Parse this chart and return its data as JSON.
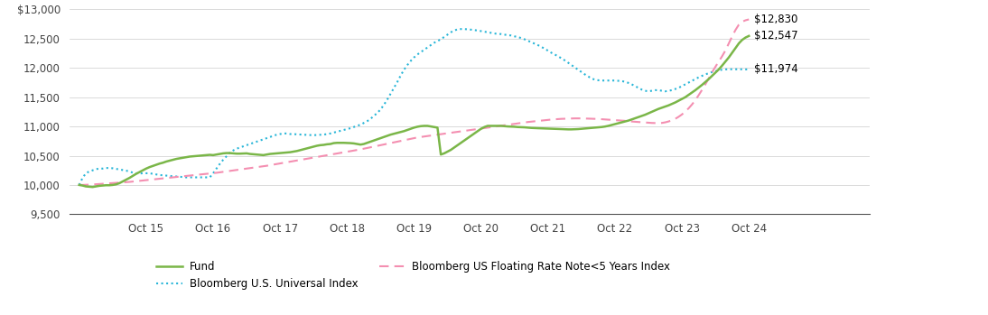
{
  "x_labels": [
    "",
    "Oct 15",
    "Oct 16",
    "Oct 17",
    "Oct 18",
    "Oct 19",
    "Oct 20",
    "Oct 21",
    "Oct 22",
    "Oct 23",
    "Oct 24"
  ],
  "ylim": [
    9500,
    13000
  ],
  "yticks": [
    9500,
    10000,
    10500,
    11000,
    11500,
    12000,
    12500,
    13000
  ],
  "fund_label": "Fund",
  "fund_color": "#7ab648",
  "fund_end_label": "$12,547",
  "bloomberg_universal_label": "Bloomberg U.S. Universal Index",
  "bloomberg_universal_color": "#29b6d8",
  "bloomberg_universal_end_label": "$11,974",
  "floating_rate_label": "Bloomberg US Floating Rate Note<5 Years Index",
  "floating_rate_color": "#f48fb1",
  "floating_rate_end_label": "$12,830",
  "fund_data": [
    10000,
    9990,
    9975,
    9970,
    9965,
    9975,
    9985,
    9990,
    9995,
    9995,
    10000,
    10010,
    10030,
    10060,
    10090,
    10120,
    10155,
    10190,
    10220,
    10250,
    10280,
    10305,
    10325,
    10345,
    10365,
    10380,
    10400,
    10415,
    10430,
    10445,
    10455,
    10465,
    10475,
    10485,
    10490,
    10495,
    10500,
    10505,
    10510,
    10515,
    10510,
    10520,
    10530,
    10540,
    10545,
    10545,
    10540,
    10535,
    10535,
    10538,
    10540,
    10530,
    10525,
    10520,
    10515,
    10510,
    10520,
    10530,
    10535,
    10540,
    10545,
    10550,
    10555,
    10560,
    10570,
    10580,
    10595,
    10610,
    10625,
    10640,
    10655,
    10670,
    10680,
    10685,
    10695,
    10700,
    10715,
    10720,
    10720,
    10720,
    10718,
    10715,
    10710,
    10700,
    10690,
    10700,
    10720,
    10740,
    10760,
    10780,
    10800,
    10820,
    10840,
    10860,
    10875,
    10890,
    10905,
    10920,
    10940,
    10960,
    10980,
    10995,
    11005,
    11010,
    11010,
    11000,
    10990,
    10980,
    10520,
    10540,
    10570,
    10600,
    10640,
    10680,
    10720,
    10760,
    10800,
    10840,
    10880,
    10920,
    10960,
    10990,
    11010,
    11010,
    11010,
    11010,
    11010,
    11005,
    11000,
    10998,
    10995,
    10990,
    10988,
    10985,
    10980,
    10975,
    10972,
    10970,
    10968,
    10965,
    10965,
    10963,
    10960,
    10958,
    10955,
    10952,
    10950,
    10950,
    10952,
    10955,
    10960,
    10965,
    10970,
    10975,
    10980,
    10985,
    10990,
    10998,
    11010,
    11025,
    11040,
    11055,
    11070,
    11085,
    11100,
    11120,
    11140,
    11160,
    11180,
    11200,
    11225,
    11250,
    11275,
    11300,
    11320,
    11340,
    11360,
    11385,
    11410,
    11440,
    11470,
    11500,
    11540,
    11580,
    11620,
    11665,
    11710,
    11760,
    11810,
    11865,
    11920,
    11975,
    12040,
    12110,
    12180,
    12260,
    12340,
    12420,
    12480,
    12520,
    12547
  ],
  "bloomberg_universal_data": [
    10000,
    10120,
    10200,
    10230,
    10250,
    10270,
    10280,
    10280,
    10290,
    10290,
    10285,
    10275,
    10265,
    10255,
    10245,
    10230,
    10210,
    10200,
    10195,
    10200,
    10200,
    10200,
    10190,
    10180,
    10170,
    10165,
    10160,
    10155,
    10148,
    10145,
    10140,
    10135,
    10130,
    10130,
    10130,
    10130,
    10130,
    10130,
    10130,
    10130,
    10200,
    10280,
    10360,
    10430,
    10490,
    10550,
    10590,
    10620,
    10640,
    10660,
    10680,
    10700,
    10720,
    10740,
    10760,
    10780,
    10800,
    10820,
    10840,
    10860,
    10870,
    10880,
    10880,
    10870,
    10870,
    10865,
    10862,
    10858,
    10855,
    10852,
    10850,
    10855,
    10858,
    10860,
    10870,
    10880,
    10895,
    10910,
    10925,
    10940,
    10955,
    10970,
    10990,
    11010,
    11030,
    11060,
    11090,
    11130,
    11180,
    11230,
    11290,
    11370,
    11460,
    11560,
    11660,
    11760,
    11870,
    11970,
    12050,
    12120,
    12180,
    12230,
    12270,
    12310,
    12350,
    12390,
    12430,
    12460,
    12490,
    12530,
    12570,
    12610,
    12640,
    12660,
    12665,
    12665,
    12660,
    12655,
    12648,
    12640,
    12630,
    12620,
    12610,
    12600,
    12590,
    12580,
    12580,
    12570,
    12560,
    12555,
    12540,
    12530,
    12510,
    12490,
    12465,
    12440,
    12415,
    12390,
    12360,
    12330,
    12295,
    12260,
    12230,
    12200,
    12165,
    12130,
    12090,
    12050,
    12010,
    11970,
    11930,
    11890,
    11855,
    11820,
    11800,
    11790,
    11785,
    11785,
    11785,
    11785,
    11785,
    11780,
    11775,
    11765,
    11745,
    11720,
    11690,
    11660,
    11630,
    11610,
    11600,
    11610,
    11620,
    11620,
    11610,
    11600,
    11610,
    11620,
    11640,
    11660,
    11690,
    11720,
    11750,
    11780,
    11810,
    11840,
    11865,
    11890,
    11910,
    11930,
    11945,
    11960,
    11970,
    11975,
    11978,
    11978,
    11978,
    11978,
    11977,
    11976,
    11974
  ],
  "floating_rate_data": [
    10000,
    10000,
    10002,
    10005,
    10008,
    10012,
    10016,
    10020,
    10024,
    10028,
    10032,
    10036,
    10040,
    10044,
    10048,
    10052,
    10058,
    10064,
    10070,
    10076,
    10082,
    10088,
    10094,
    10100,
    10106,
    10112,
    10118,
    10124,
    10130,
    10136,
    10142,
    10148,
    10154,
    10160,
    10166,
    10172,
    10178,
    10184,
    10190,
    10196,
    10202,
    10208,
    10216,
    10224,
    10232,
    10240,
    10248,
    10256,
    10264,
    10272,
    10280,
    10288,
    10296,
    10304,
    10312,
    10320,
    10328,
    10338,
    10348,
    10358,
    10368,
    10378,
    10388,
    10398,
    10408,
    10418,
    10428,
    10438,
    10448,
    10458,
    10468,
    10478,
    10488,
    10498,
    10508,
    10518,
    10528,
    10538,
    10548,
    10558,
    10568,
    10578,
    10588,
    10598,
    10608,
    10620,
    10632,
    10644,
    10656,
    10668,
    10680,
    10692,
    10704,
    10716,
    10728,
    10740,
    10752,
    10764,
    10776,
    10788,
    10800,
    10812,
    10820,
    10828,
    10836,
    10844,
    10852,
    10860,
    10868,
    10876,
    10884,
    10892,
    10900,
    10908,
    10916,
    10924,
    10932,
    10940,
    10948,
    10956,
    10964,
    10972,
    10980,
    10988,
    10996,
    11004,
    11012,
    11020,
    11028,
    11036,
    11044,
    11052,
    11060,
    11068,
    11076,
    11082,
    11088,
    11094,
    11100,
    11106,
    11112,
    11118,
    11122,
    11126,
    11130,
    11132,
    11134,
    11136,
    11138,
    11138,
    11138,
    11136,
    11134,
    11132,
    11130,
    11128,
    11124,
    11120,
    11116,
    11112,
    11108,
    11104,
    11100,
    11096,
    11090,
    11085,
    11080,
    11076,
    11072,
    11068,
    11064,
    11060,
    11058,
    11056,
    11060,
    11070,
    11085,
    11105,
    11130,
    11165,
    11205,
    11255,
    11310,
    11375,
    11450,
    11535,
    11625,
    11720,
    11820,
    11925,
    12020,
    12110,
    12200,
    12300,
    12420,
    12540,
    12650,
    12740,
    12790,
    12815,
    12830
  ]
}
